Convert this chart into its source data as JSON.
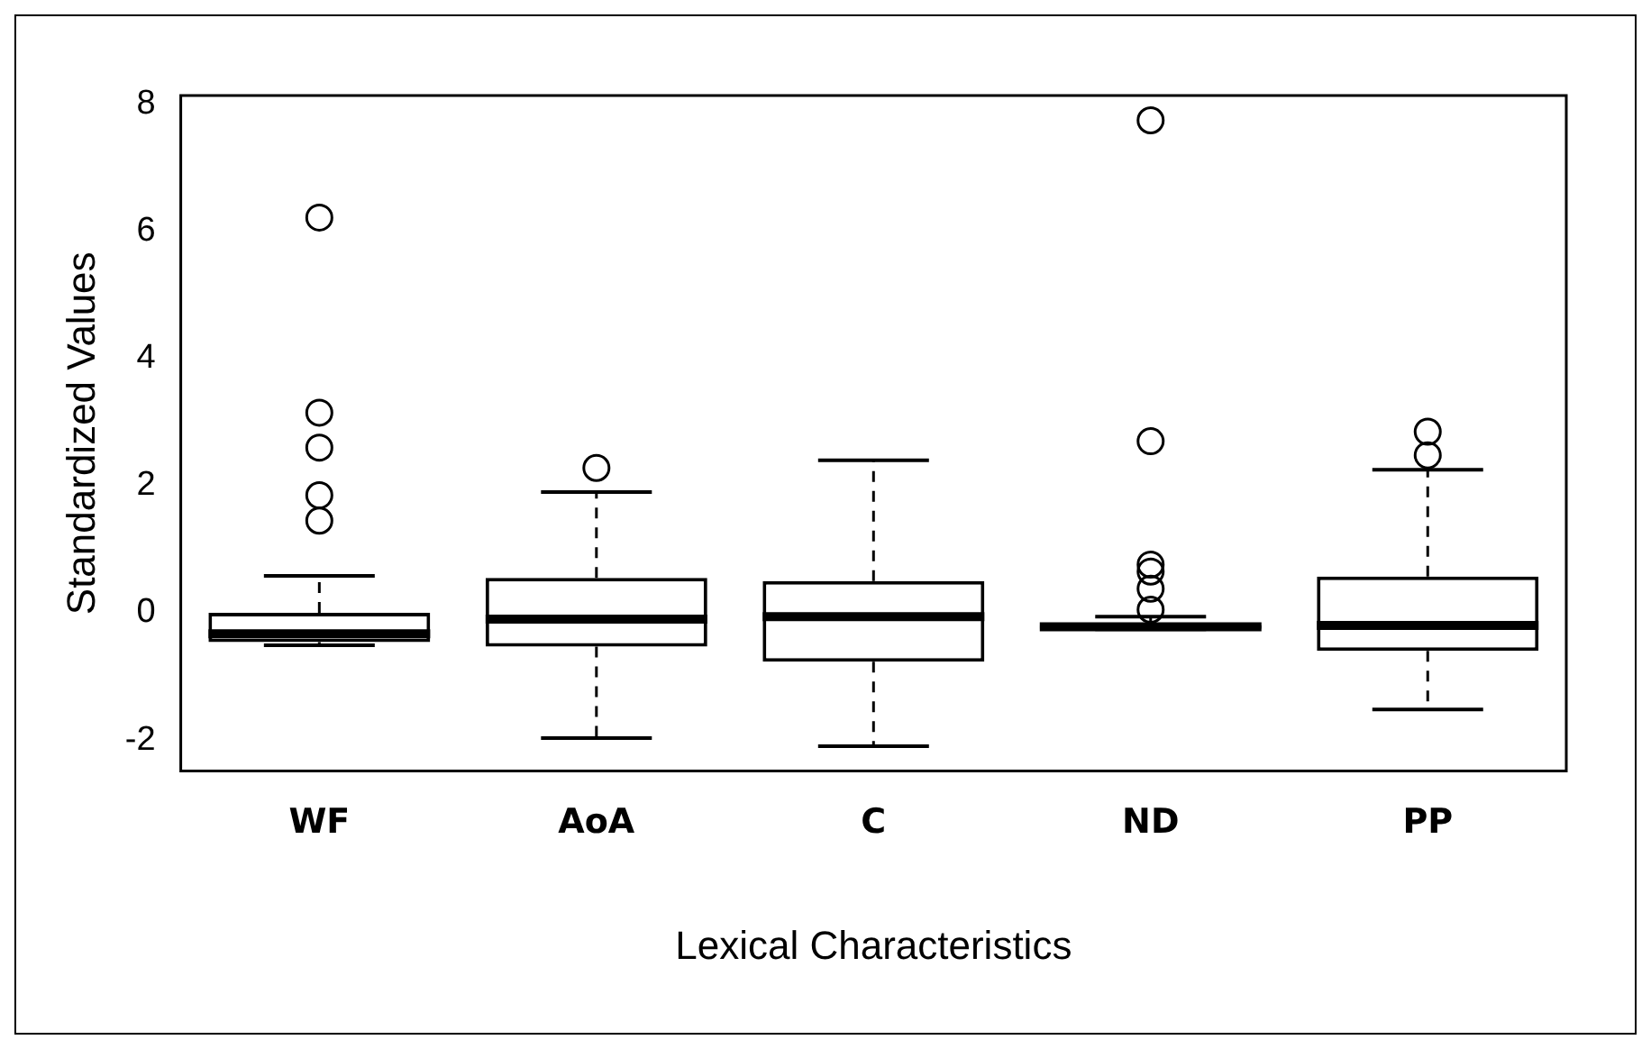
{
  "chart_data": {
    "type": "box",
    "xlabel": "Lexical Characteristics",
    "ylabel": "Standardized Values",
    "categories": [
      "WF",
      "AoA",
      "C",
      "ND",
      "PP"
    ],
    "boxes": [
      {
        "low": -0.51,
        "q1": -0.46,
        "median": -0.33,
        "q3": 0.0,
        "high": 0.58,
        "outliers": [
          6.22,
          3.15,
          2.6,
          1.85,
          1.45
        ]
      },
      {
        "low": -1.97,
        "q1": -0.53,
        "median": -0.1,
        "q3": 0.55,
        "high": 1.9,
        "outliers": [
          2.28
        ]
      },
      {
        "low": -2.1,
        "q1": -0.77,
        "median": -0.06,
        "q3": 0.5,
        "high": 2.4
      },
      {
        "low": -0.26,
        "q1": -0.25,
        "median": -0.22,
        "q3": -0.19,
        "high": -0.06,
        "outliers": [
          7.75,
          2.7,
          0.76,
          0.65,
          0.38,
          0.05
        ]
      },
      {
        "low": -1.52,
        "q1": -0.6,
        "median": -0.2,
        "q3": 0.57,
        "high": 2.25,
        "outliers": [
          2.85,
          2.48
        ]
      }
    ],
    "ylim": [
      -2.49,
      8.14
    ],
    "yticks": [
      -2,
      0,
      2,
      4,
      6,
      8
    ],
    "grid": false,
    "legend": false
  }
}
